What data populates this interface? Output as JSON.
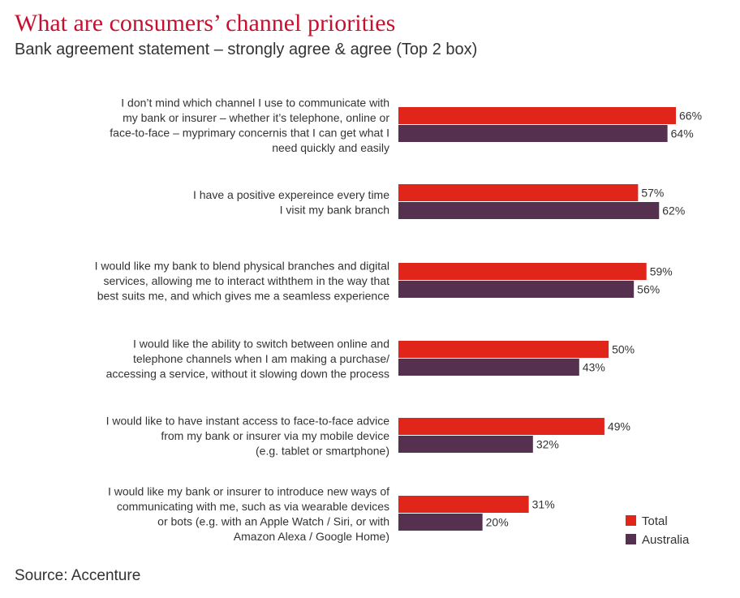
{
  "title": "What are consumers’ channel priorities",
  "subtitle": "Bank agreement statement – strongly agree & agree (Top 2 box)",
  "source": "Source: Accenture",
  "chart_data": {
    "type": "bar",
    "orientation": "horizontal",
    "categories": [
      [
        "I don’t mind which channel I use to communicate with",
        "my bank or insurer – whether it’s telephone, online or",
        "face-to-face – myprimary concernis that I can get what I",
        "need quickly and easily"
      ],
      [
        "I have a positive expereince every time",
        "I visit my bank branch"
      ],
      [
        "I would like my bank to blend physical branches and digital",
        "services, allowing me to interact withthem in the way that",
        "best suits me, and which gives me a seamless experience"
      ],
      [
        "I would like the ability to switch between online and",
        "telephone channels when I am making a purchase/",
        "accessing a service, without it slowing down the process"
      ],
      [
        "I would like to have instant access to face-to-face advice",
        "from my bank or insurer via my mobile device",
        "(e.g. tablet or smartphone)"
      ],
      [
        "I would like my bank or insurer to introduce new ways of",
        "communicating with me, such as via wearable devices",
        "or bots (e.g. with an Apple Watch / Siri, or with",
        "Amazon Alexa / Google Home)"
      ]
    ],
    "series": [
      {
        "name": "Total",
        "color": "#e1251b",
        "values": [
          66,
          57,
          59,
          50,
          49,
          31
        ],
        "labels": [
          "66%",
          "57%",
          "59%",
          "50%",
          "49%",
          "31%"
        ]
      },
      {
        "name": "Australia",
        "color": "#55304f",
        "values": [
          64,
          62,
          56,
          43,
          32,
          20
        ],
        "labels": [
          "64%",
          "62%",
          "56%",
          "43%",
          "32%",
          "20%"
        ]
      }
    ],
    "unit": "%",
    "xlim": [
      0,
      100
    ],
    "grid": false,
    "legend_position": "bottom-right"
  }
}
